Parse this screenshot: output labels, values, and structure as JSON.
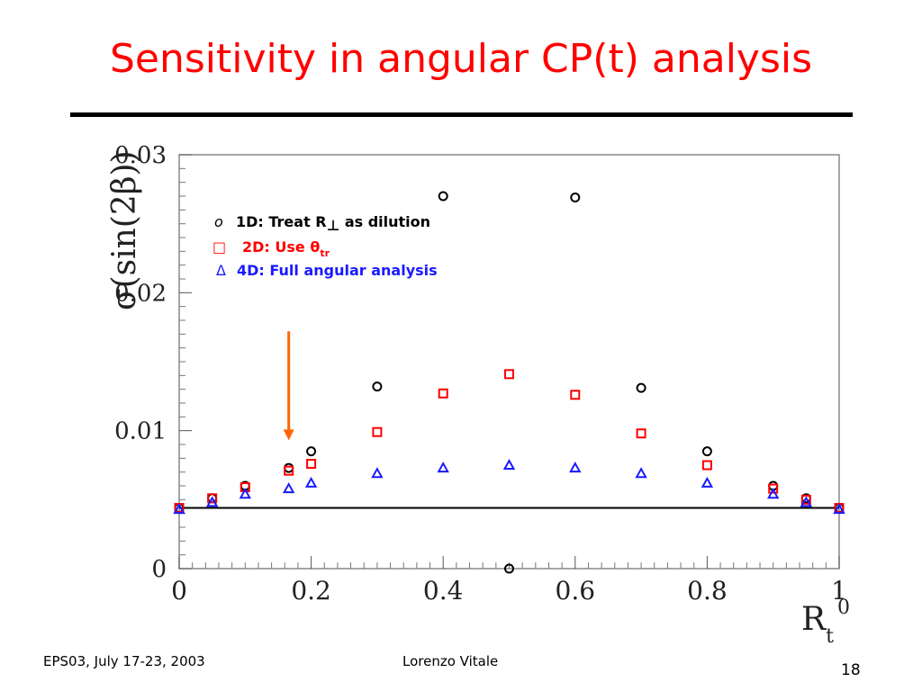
{
  "slide": {
    "title": "Sensitivity in angular CP(t) analysis",
    "footer_left": "EPS03, July 17-23, 2003",
    "footer_center": "Lorenzo Vitale",
    "page_number": "18"
  },
  "chart_data": {
    "type": "scatter",
    "ylabel": "σ(sin(2β))",
    "xlabel": "R",
    "xlabel_sub": "t",
    "xlabel_sup": "0",
    "xlim": [
      0,
      1
    ],
    "ylim": [
      0,
      0.03
    ],
    "x_ticks": [
      "0",
      "0.2",
      "0.4",
      "0.6",
      "0.8",
      "1"
    ],
    "y_ticks": [
      "0",
      "0.01",
      "0.02",
      "0.03"
    ],
    "reference_line_y": 0.0044,
    "arrow_x": 0.166,
    "arrow_y_range": [
      0.0172,
      0.0093
    ],
    "colors": {
      "series1": "#000000",
      "series2": "#ff0000",
      "series3": "#1a1aff",
      "arrow": "#ff6600"
    },
    "series": [
      {
        "name": "1D: Treat R⊥ as dilution",
        "legend_symbol": "o",
        "marker": "circle",
        "x": [
          0,
          0.05,
          0.1,
          0.166,
          0.2,
          0.3,
          0.4,
          0.5,
          0.6,
          0.7,
          0.8,
          0.9,
          0.95,
          1
        ],
        "y": [
          0.0044,
          0.0051,
          0.006,
          0.0073,
          0.0085,
          0.0132,
          0.027,
          0,
          0.0269,
          0.0131,
          0.0085,
          0.006,
          0.0051,
          0.0044
        ]
      },
      {
        "name": "2D: Use θtr",
        "legend_symbol": "□",
        "marker": "square",
        "x": [
          0,
          0.05,
          0.1,
          0.166,
          0.2,
          0.3,
          0.4,
          0.5,
          0.6,
          0.7,
          0.8,
          0.9,
          0.95,
          1
        ],
        "y": [
          0.0044,
          0.0051,
          0.0059,
          0.0071,
          0.0076,
          0.0099,
          0.0127,
          0.0141,
          0.0126,
          0.0098,
          0.0075,
          0.0058,
          0.005,
          0.0044
        ]
      },
      {
        "name": "4D: Full angular analysis",
        "legend_symbol": "Δ",
        "marker": "triangle",
        "x": [
          0,
          0.05,
          0.1,
          0.166,
          0.2,
          0.3,
          0.4,
          0.5,
          0.6,
          0.7,
          0.8,
          0.9,
          0.95,
          1
        ],
        "y": [
          0.0043,
          0.0048,
          0.0054,
          0.0058,
          0.0062,
          0.0069,
          0.0073,
          0.0075,
          0.0073,
          0.0069,
          0.0062,
          0.0054,
          0.0048,
          0.0043
        ]
      }
    ],
    "legend": [
      {
        "symbol": "o",
        "prefix": "1D: Treat R",
        "perp": "⊥",
        "suffix": " as dilution"
      },
      {
        "symbol": "□",
        "prefix": "2D: Use ",
        "theta": "θ",
        "sub": "tr"
      },
      {
        "symbol": "Δ",
        "text": "4D: Full angular analysis"
      }
    ]
  }
}
